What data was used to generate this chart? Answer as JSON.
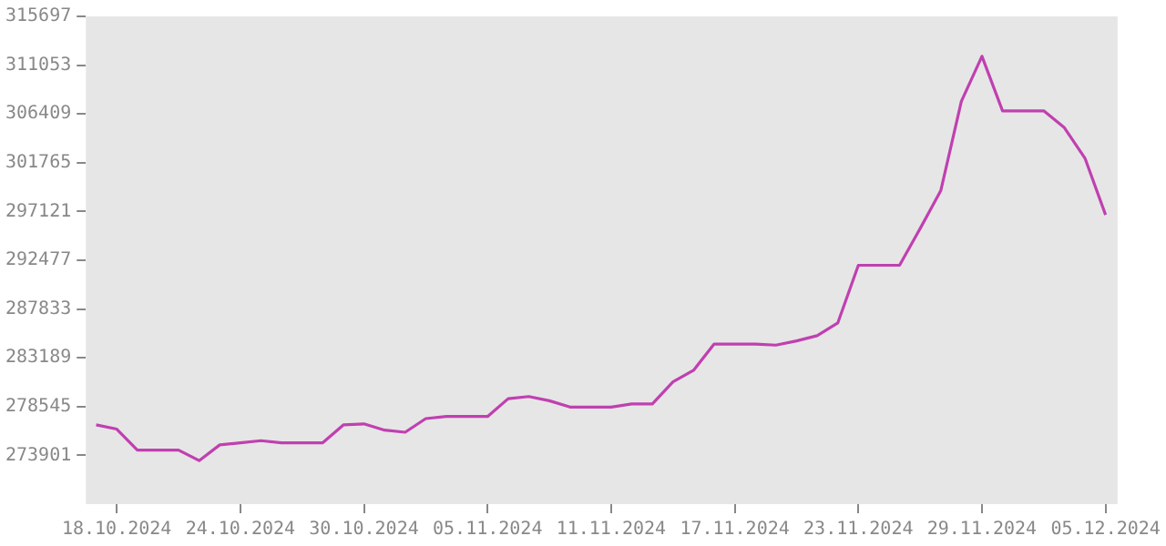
{
  "chart_data": {
    "type": "line",
    "x": [
      "2024-10-17",
      "2024-10-18",
      "2024-10-19",
      "2024-10-20",
      "2024-10-21",
      "2024-10-22",
      "2024-10-23",
      "2024-10-24",
      "2024-10-25",
      "2024-10-26",
      "2024-10-27",
      "2024-10-28",
      "2024-10-29",
      "2024-10-30",
      "2024-10-31",
      "2024-11-01",
      "2024-11-02",
      "2024-11-03",
      "2024-11-04",
      "2024-11-05",
      "2024-11-06",
      "2024-11-07",
      "2024-11-08",
      "2024-11-09",
      "2024-11-10",
      "2024-11-11",
      "2024-11-12",
      "2024-11-13",
      "2024-11-14",
      "2024-11-15",
      "2024-11-16",
      "2024-11-17",
      "2024-11-18",
      "2024-11-19",
      "2024-11-20",
      "2024-11-21",
      "2024-11-22",
      "2024-11-23",
      "2024-11-24",
      "2024-11-25",
      "2024-11-26",
      "2024-11-27",
      "2024-11-28",
      "2024-11-29",
      "2024-11-30",
      "2024-12-01",
      "2024-12-02",
      "2024-12-03",
      "2024-12-04",
      "2024-12-05"
    ],
    "series": [
      {
        "color": "#c040b0",
        "values": [
          276800,
          276400,
          274400,
          274400,
          274400,
          273400,
          274900,
          275100,
          275300,
          275100,
          275100,
          275100,
          276800,
          276900,
          276300,
          276100,
          277400,
          277600,
          277600,
          277600,
          279300,
          279500,
          279100,
          278500,
          278500,
          278500,
          278800,
          278800,
          280900,
          282000,
          284500,
          284500,
          284500,
          284400,
          284800,
          285300,
          286500,
          292000,
          292000,
          292000,
          295500,
          299100,
          307600,
          311900,
          306700,
          306700,
          306700,
          305100,
          302200,
          296800
        ]
      }
    ],
    "xlim": [
      "2024-10-16T12:00",
      "2024-12-05T14:00"
    ],
    "xticks": [
      {
        "value": "2024-10-18",
        "label": "18.10.2024"
      },
      {
        "value": "2024-10-24",
        "label": "24.10.2024"
      },
      {
        "value": "2024-10-30",
        "label": "30.10.2024"
      },
      {
        "value": "2024-11-05",
        "label": "05.11.2024"
      },
      {
        "value": "2024-11-11",
        "label": "11.11.2024"
      },
      {
        "value": "2024-11-17",
        "label": "17.11.2024"
      },
      {
        "value": "2024-11-23",
        "label": "23.11.2024"
      },
      {
        "value": "2024-11-29",
        "label": "29.11.2024"
      },
      {
        "value": "2024-12-05",
        "label": "05.12.2024"
      }
    ],
    "ylim": [
      269257,
      315697
    ],
    "yticks": [
      273901,
      278545,
      283189,
      287833,
      292477,
      297121,
      301765,
      306409,
      311053,
      315697
    ],
    "grid": false,
    "legend": false,
    "marker": "none",
    "line_style": "solid"
  }
}
